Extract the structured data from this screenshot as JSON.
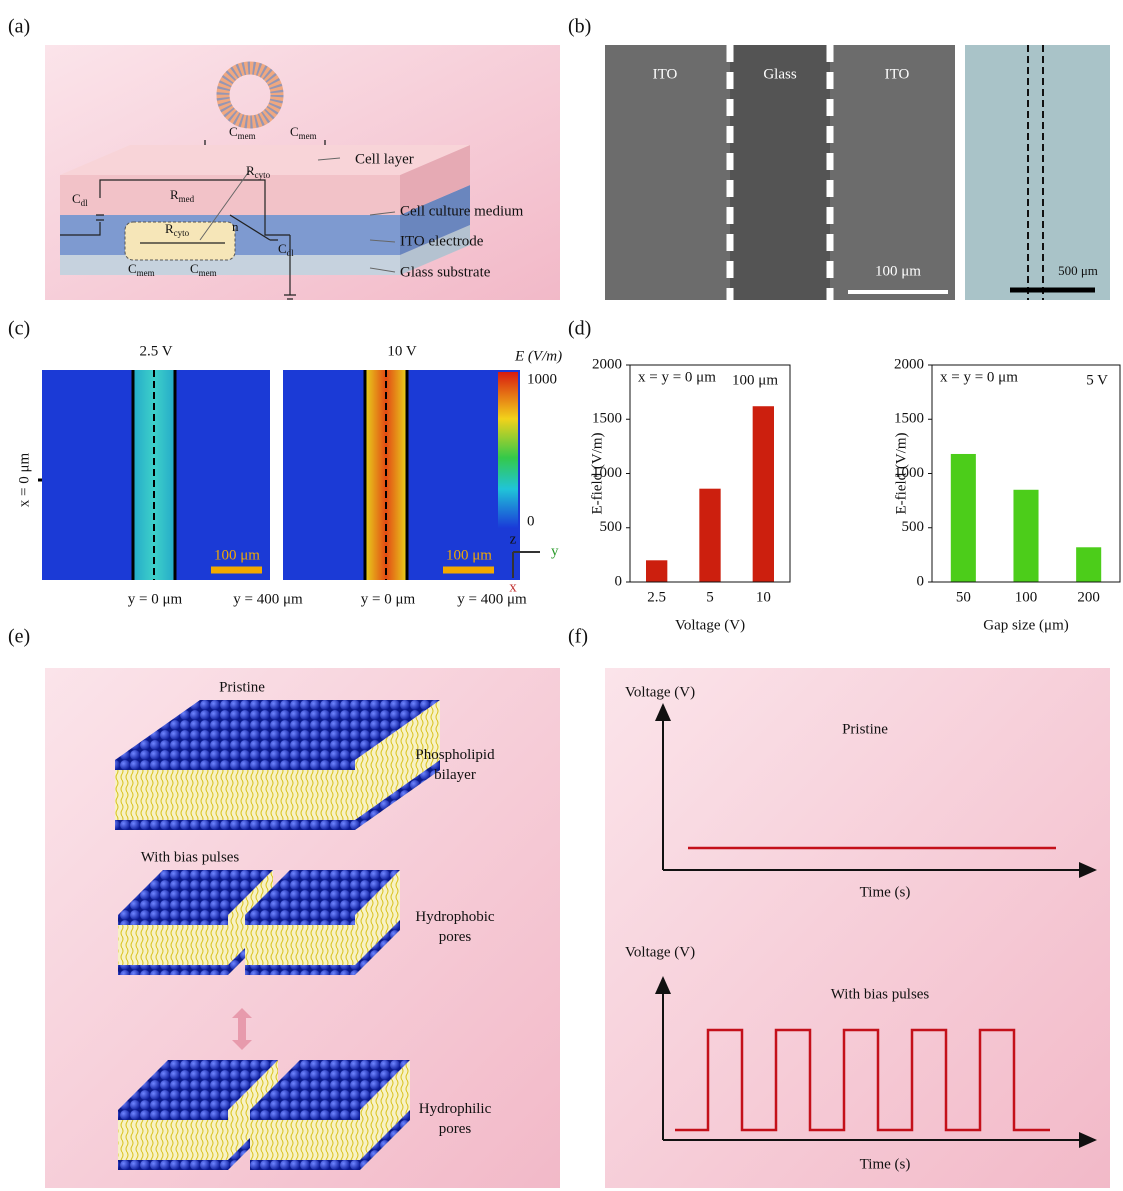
{
  "panel_labels": [
    "(a)",
    "(b)",
    "(c)",
    "(d)",
    "(e)",
    "(f)"
  ],
  "a": {
    "labels": [
      "Cell layer",
      "Cell culture medium",
      "ITO electrode",
      "Glass substrate"
    ],
    "components": [
      {
        "main": "C",
        "sub": "mem"
      },
      {
        "main": "C",
        "sub": "mem"
      },
      {
        "main": "R",
        "sub": "cyto"
      },
      {
        "main": "R",
        "sub": "med"
      },
      {
        "main": "C",
        "sub": "dl"
      },
      {
        "main": "R",
        "sub": "cyto"
      },
      {
        "main": "C",
        "sub": "dl"
      },
      {
        "main": "C",
        "sub": "mem"
      },
      {
        "main": "C",
        "sub": "mem"
      }
    ],
    "n": "n"
  },
  "b": {
    "regions": [
      "ITO",
      "Glass",
      "ITO"
    ],
    "scale_bars": [
      "100 μm",
      "500 μm"
    ]
  },
  "c": {
    "titles": [
      "2.5 V",
      "10 V"
    ],
    "colorbar_title": "E (V/m)",
    "colorbar_ticks": [
      1000,
      0
    ],
    "x_label": "x = 0 μm",
    "y_labels": [
      "y = 0 μm",
      "y = 400 μm",
      "y = 0 μm",
      "y = 400 μm"
    ],
    "scale_bars": [
      "100 μm",
      "100 μm"
    ],
    "axes": [
      "z",
      "y",
      "x"
    ]
  },
  "chart_data": [
    {
      "type": "bar",
      "categories": [
        "2.5",
        "5",
        "10"
      ],
      "values": [
        200,
        860,
        1620
      ],
      "color": "#cc1f0e",
      "ylim": [
        0,
        2000
      ],
      "yticks": [
        0,
        500,
        1000,
        1500,
        2000
      ],
      "x_label": "Voltage (V)",
      "y_label": "E-field (V/m)",
      "annotations": [
        "x = y = 0 μm",
        "100 μm"
      ],
      "grid": false
    },
    {
      "type": "bar",
      "categories": [
        "50",
        "100",
        "200"
      ],
      "values": [
        1180,
        850,
        320
      ],
      "color": "#4ccd1a",
      "ylim": [
        0,
        2000
      ],
      "yticks": [
        0,
        500,
        1000,
        1500,
        2000
      ],
      "x_label": "Gap size (μm)",
      "y_label": "E-field (V/m)",
      "annotations": [
        "x = y = 0 μm",
        "5 V"
      ],
      "grid": false
    }
  ],
  "e": {
    "states": [
      "Pristine",
      "With bias pulses"
    ],
    "labels": [
      [
        "Phospholipid",
        "bilayer"
      ],
      [
        "Hydrophobic",
        "pores"
      ],
      [
        "Hydrophilic",
        "pores"
      ]
    ]
  },
  "f": {
    "plots": [
      {
        "y_label": "Voltage (V)",
        "title": "Pristine",
        "x_label": "Time (s)"
      },
      {
        "y_label": "Voltage (V)",
        "title": "With bias pulses",
        "x_label": "Time (s)"
      }
    ]
  }
}
